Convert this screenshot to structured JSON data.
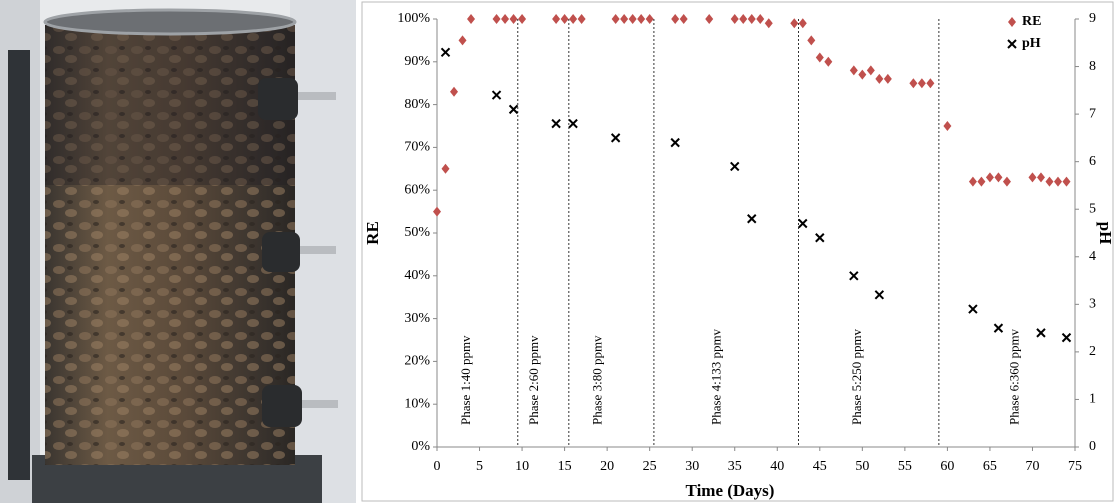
{
  "chart_data": {
    "type": "scatter",
    "xlabel": "Time (Days)",
    "ylabel": "RE",
    "y2label": "pH",
    "xlim": [
      0,
      75
    ],
    "xticks": [
      0,
      5,
      10,
      15,
      20,
      25,
      30,
      35,
      40,
      45,
      50,
      55,
      60,
      65,
      70,
      75
    ],
    "ylim": [
      0,
      100
    ],
    "yticks": [
      {
        "value": 0,
        "label": "0%"
      },
      {
        "value": 10,
        "label": "10%"
      },
      {
        "value": 20,
        "label": "20%"
      },
      {
        "value": 30,
        "label": "30%"
      },
      {
        "value": 40,
        "label": "40%"
      },
      {
        "value": 50,
        "label": "50%"
      },
      {
        "value": 60,
        "label": "60%"
      },
      {
        "value": 70,
        "label": "70%"
      },
      {
        "value": 80,
        "label": "80%"
      },
      {
        "value": 90,
        "label": "90%"
      },
      {
        "value": 100,
        "label": "100%"
      }
    ],
    "y2lim": [
      0,
      9
    ],
    "y2ticks": [
      0,
      1,
      2,
      3,
      4,
      5,
      6,
      7,
      8,
      9
    ],
    "legend": "top-right",
    "series": [
      {
        "name": "RE",
        "color": "#c0504d",
        "marker": "diamond",
        "x": [
          0,
          1,
          2,
          3,
          4,
          7,
          8,
          9,
          10,
          14,
          15,
          16,
          17,
          21,
          22,
          23,
          24,
          25,
          28,
          29,
          32,
          35,
          36,
          37,
          38,
          39,
          42,
          43,
          44,
          45,
          46,
          49,
          50,
          51,
          52,
          53,
          56,
          57,
          58,
          60,
          63,
          64,
          65,
          66,
          67,
          70,
          71,
          72,
          73,
          74
        ],
        "values": [
          55,
          65,
          83,
          95,
          100,
          100,
          100,
          100,
          100,
          100,
          100,
          100,
          100,
          100,
          100,
          100,
          100,
          100,
          100,
          100,
          100,
          100,
          100,
          100,
          100,
          99,
          99,
          99,
          95,
          91,
          90,
          88,
          87,
          88,
          86,
          86,
          85,
          85,
          85,
          75,
          62,
          62,
          63,
          63,
          62,
          63,
          63,
          62,
          62,
          62
        ]
      },
      {
        "name": "pH",
        "color": "#000000",
        "marker": "x",
        "axis": "y2",
        "x": [
          1,
          7,
          9,
          14,
          16,
          21,
          28,
          35,
          37,
          43,
          45,
          49,
          52,
          63,
          66,
          71,
          74
        ],
        "values": [
          8.3,
          7.4,
          7.1,
          6.8,
          6.8,
          6.5,
          6.4,
          5.9,
          4.8,
          4.7,
          4.4,
          3.6,
          3.2,
          2.9,
          2.5,
          2.4,
          2.3
        ]
      }
    ],
    "phase_lines": [
      9.5,
      15.5,
      25.5,
      42.5,
      59
    ],
    "annotations": [
      {
        "text": "Phase 1:40 ppmv",
        "x": 3.5
      },
      {
        "text": "Phase 2:60 ppmv",
        "x": 11.5
      },
      {
        "text": "Phase 3:80 ppmv",
        "x": 19
      },
      {
        "text": "Phase 4:133 ppmv",
        "x": 33
      },
      {
        "text": "Phase 5:250 ppmv",
        "x": 49.5
      },
      {
        "text": "Phase 6:360 ppmv",
        "x": 68
      }
    ]
  }
}
